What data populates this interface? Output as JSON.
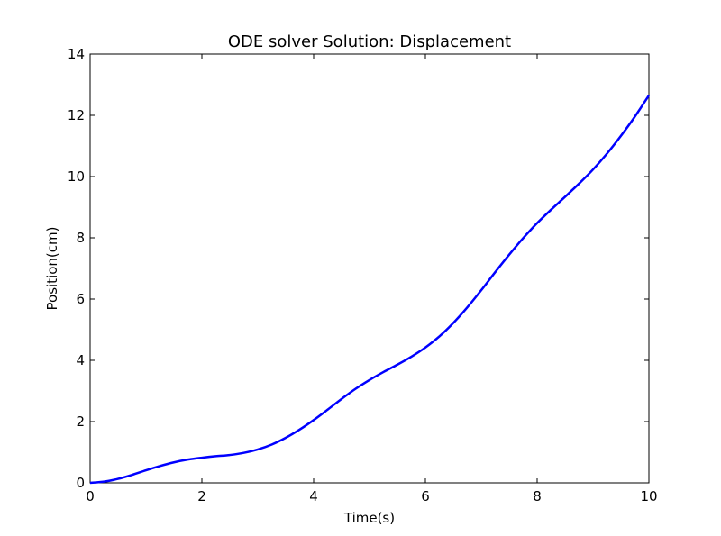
{
  "chart_data": {
    "type": "line",
    "title": "ODE solver Solution: Displacement",
    "xlabel": "Time(s)",
    "ylabel": "Position(cm)",
    "xlim": [
      0,
      10
    ],
    "ylim": [
      0,
      14
    ],
    "xticks": [
      "0",
      "2",
      "4",
      "6",
      "8",
      "10"
    ],
    "yticks": [
      "0",
      "2",
      "4",
      "6",
      "8",
      "10",
      "12",
      "14"
    ],
    "grid": false,
    "series": [
      {
        "color": "#0000ff",
        "x": [
          0,
          0.25,
          0.5,
          0.75,
          1.0,
          1.25,
          1.5,
          1.75,
          2.0,
          2.25,
          2.5,
          2.75,
          3.0,
          3.25,
          3.5,
          3.75,
          4.0,
          4.25,
          4.5,
          4.75,
          5.0,
          5.25,
          5.5,
          5.75,
          6.0,
          6.25,
          6.5,
          6.75,
          7.0,
          7.25,
          7.5,
          7.75,
          8.0,
          8.25,
          8.5,
          8.75,
          9.0,
          9.25,
          9.5,
          9.75,
          10.0
        ],
        "y": [
          0.0,
          0.04,
          0.13,
          0.26,
          0.41,
          0.55,
          0.67,
          0.76,
          0.82,
          0.87,
          0.91,
          0.98,
          1.09,
          1.25,
          1.47,
          1.74,
          2.05,
          2.39,
          2.74,
          3.07,
          3.36,
          3.62,
          3.86,
          4.12,
          4.42,
          4.78,
          5.22,
          5.73,
          6.29,
          6.88,
          7.45,
          7.99,
          8.48,
          8.92,
          9.34,
          9.77,
          10.23,
          10.75,
          11.33,
          11.96,
          12.65
        ]
      }
    ]
  }
}
